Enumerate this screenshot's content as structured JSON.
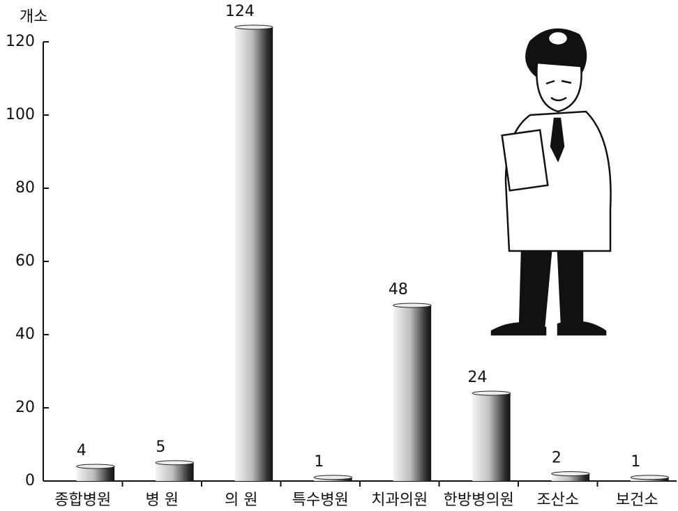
{
  "chart_data": {
    "type": "bar",
    "y_label": "개소",
    "categories": [
      "종합병원",
      "병 원",
      "의 원",
      "특수병원",
      "치과의원",
      "한방병의원",
      "조산소",
      "보건소"
    ],
    "values": [
      4,
      5,
      124,
      1,
      48,
      24,
      2,
      1
    ],
    "color": "#222222",
    "ylim": [
      0,
      120
    ],
    "yticks": [
      0,
      20,
      40,
      60,
      80,
      100,
      120
    ],
    "grid": false
  }
}
